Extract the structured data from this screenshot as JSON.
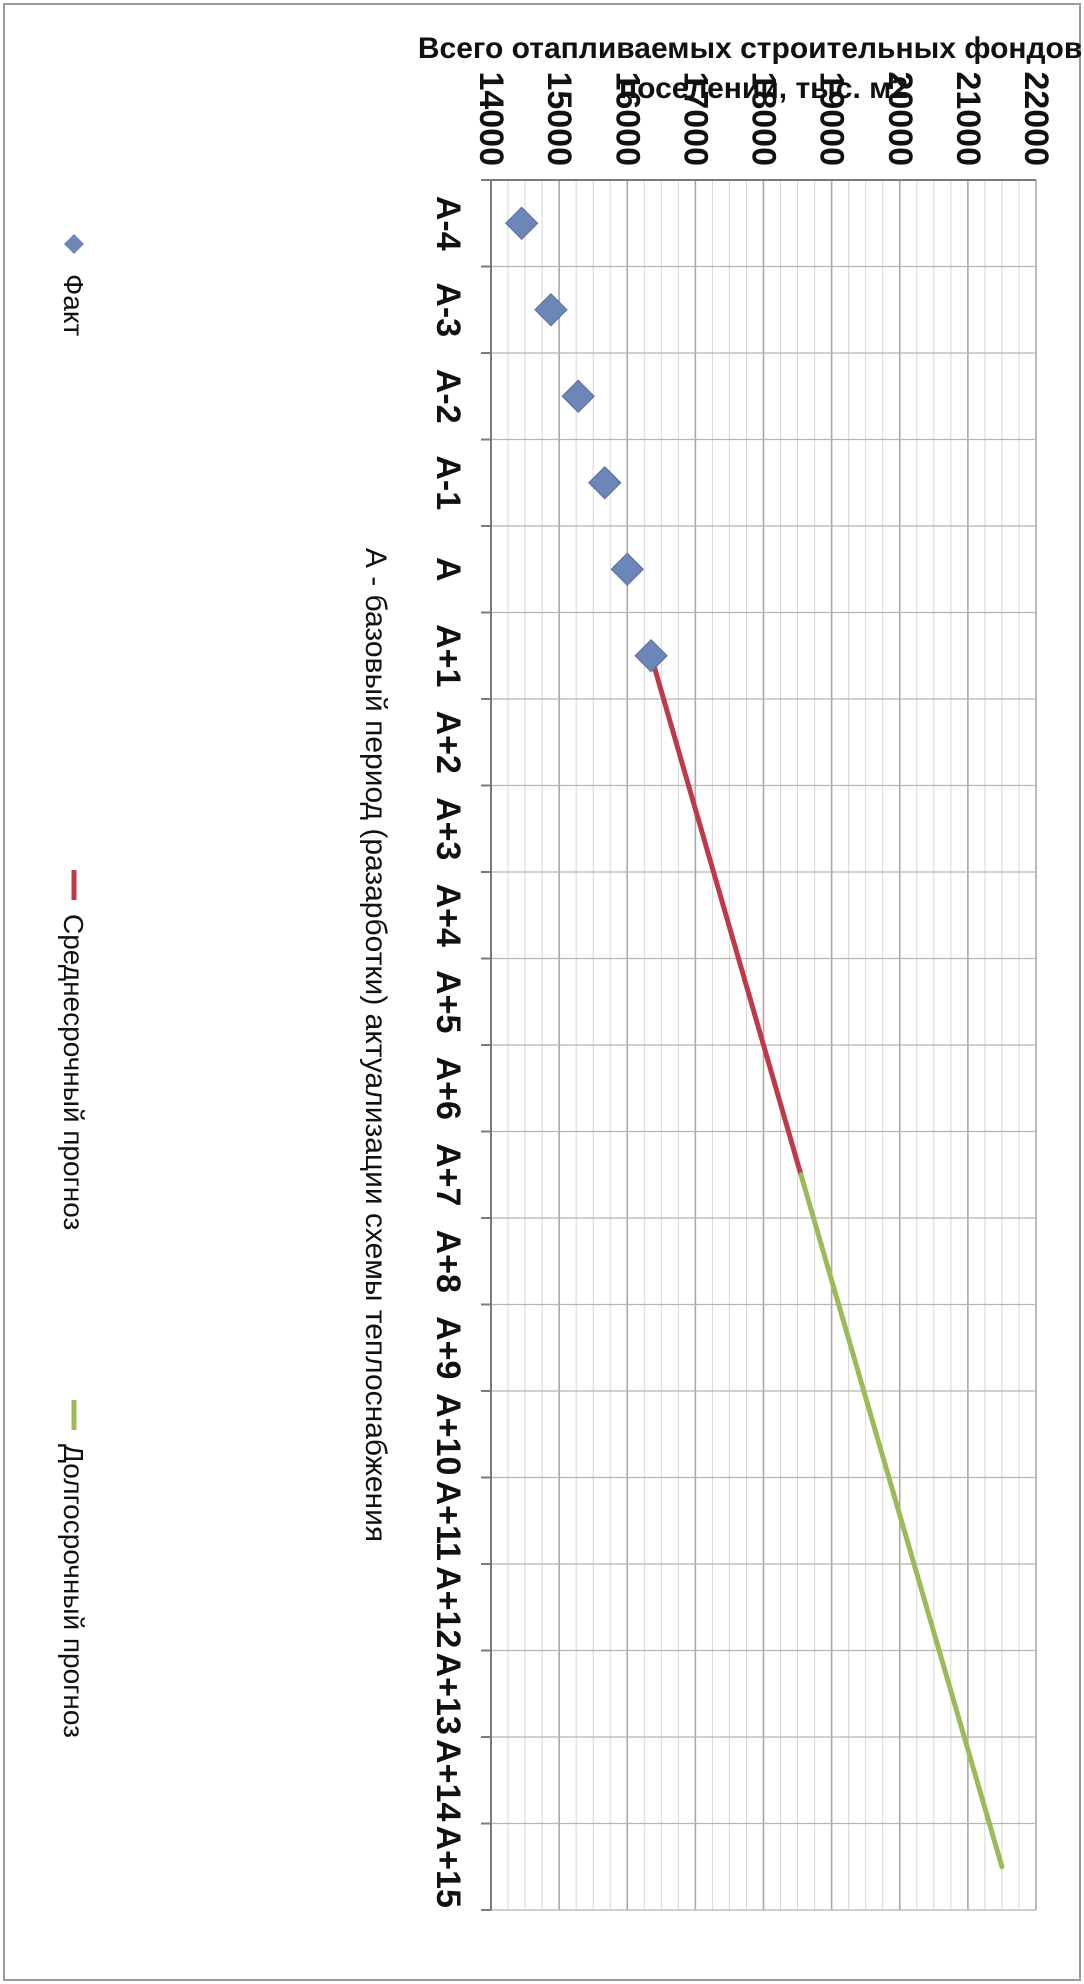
{
  "chart_data": {
    "type": "line",
    "title": "",
    "ylabel": "Всего отапливаемых строительных фондов в поселении, тыс. м2",
    "xlabel": "А - базовый период (разарботки) актуализации схемы теплоснабжения",
    "ylim": [
      14000,
      22000
    ],
    "yticks": [
      "14000",
      "15000",
      "16000",
      "17000",
      "18000",
      "19000",
      "20000",
      "21000",
      "22000"
    ],
    "categories": [
      "А-4",
      "А-3",
      "А-2",
      "А-1",
      "А",
      "А+1",
      "А+2",
      "А+3",
      "А+4",
      "А+5",
      "А+6",
      "А+7",
      "А+8",
      "А+9",
      "А+10",
      "А+11",
      "А+12",
      "А+13",
      "А+14",
      "А+15"
    ],
    "grid": true,
    "legend_position": "bottom",
    "series": [
      {
        "name": "Факт",
        "kind": "scatter",
        "color": "#6d86b8",
        "marker": "diamond",
        "points": [
          {
            "x": "А-4",
            "y": 14450
          },
          {
            "x": "А-3",
            "y": 14880
          },
          {
            "x": "А-2",
            "y": 15280
          },
          {
            "x": "А-1",
            "y": 15670
          },
          {
            "x": "А",
            "y": 16000
          },
          {
            "x": "А+1",
            "y": 16350
          }
        ]
      },
      {
        "name": "Среднесрочный прогноз",
        "kind": "line",
        "color": "#c0394b",
        "points": [
          {
            "x": "А+1",
            "y": 16350
          },
          {
            "x": "А+7",
            "y": 18550
          }
        ]
      },
      {
        "name": "Долгосрочный прогноз",
        "kind": "line",
        "color": "#9bbb59",
        "points": [
          {
            "x": "А+7",
            "y": 18550
          },
          {
            "x": "А+15",
            "y": 21500
          }
        ]
      }
    ]
  }
}
